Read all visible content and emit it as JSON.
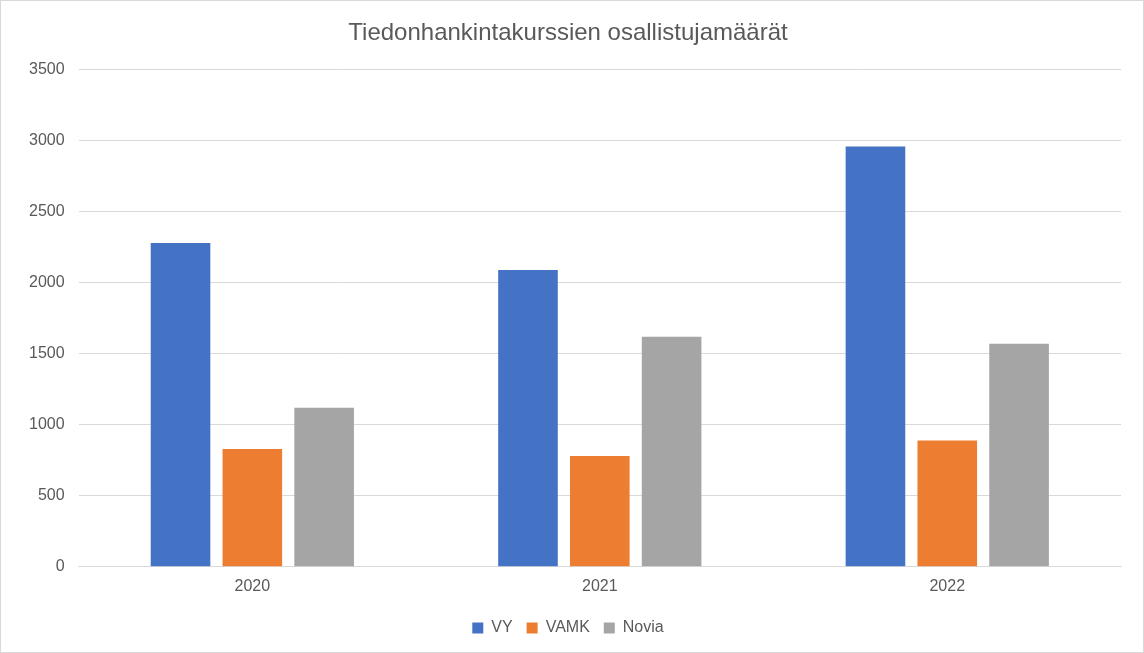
{
  "chart_data": {
    "type": "bar",
    "title": "Tiedonhankintakurssien osallistujamäärät",
    "categories": [
      "2020",
      "2021",
      "2022"
    ],
    "series": [
      {
        "name": "VY",
        "color": "#4472c4",
        "values": [
          2280,
          2090,
          2960
        ]
      },
      {
        "name": "VAMK",
        "color": "#ed7d31",
        "values": [
          830,
          780,
          890
        ]
      },
      {
        "name": "Novia",
        "color": "#a5a5a5",
        "values": [
          1120,
          1620,
          1570
        ]
      }
    ],
    "ylim": [
      0,
      3500
    ],
    "yticks": [
      0,
      500,
      1000,
      1500,
      2000,
      2500,
      3000,
      3500
    ],
    "grid": true,
    "legend": "bottom"
  }
}
